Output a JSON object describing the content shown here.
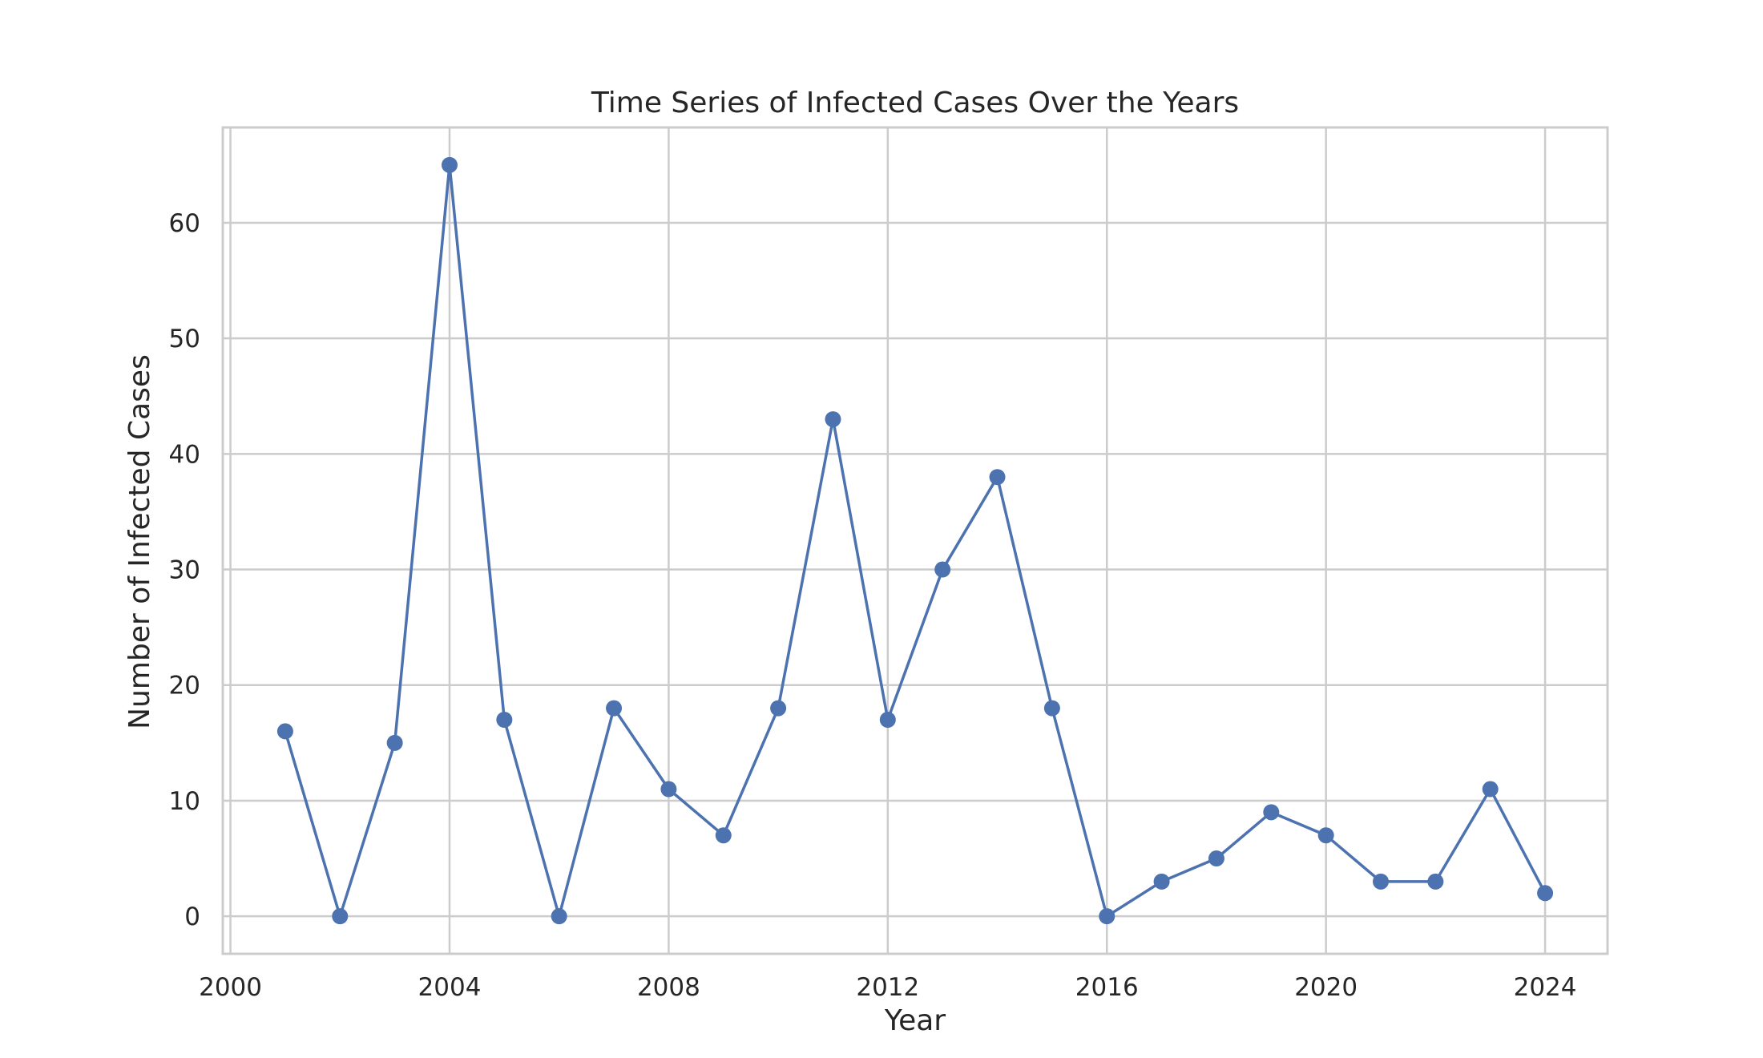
{
  "chart_data": {
    "type": "line",
    "title": "Time Series of Infected Cases Over the Years",
    "xlabel": "Year",
    "ylabel": "Number of Infected Cases",
    "x": [
      2001,
      2002,
      2003,
      2004,
      2005,
      2006,
      2007,
      2008,
      2009,
      2010,
      2011,
      2012,
      2013,
      2014,
      2015,
      2016,
      2017,
      2018,
      2019,
      2020,
      2021,
      2022,
      2023,
      2024
    ],
    "series": [
      {
        "values": [
          16,
          0,
          15,
          65,
          17,
          0,
          18,
          11,
          7,
          18,
          43,
          17,
          30,
          38,
          18,
          0,
          3,
          5,
          9,
          7,
          3,
          3,
          11,
          2
        ],
        "color": "#4c72b0",
        "marker": "circle"
      }
    ],
    "xlim": [
      1999.86,
      2025.14
    ],
    "ylim": [
      -3.25,
      68.25
    ],
    "xticks": [
      2000,
      2004,
      2008,
      2012,
      2016,
      2020,
      2024
    ],
    "yticks": [
      0,
      10,
      20,
      30,
      40,
      50,
      60
    ],
    "grid": true,
    "legend": "none"
  }
}
